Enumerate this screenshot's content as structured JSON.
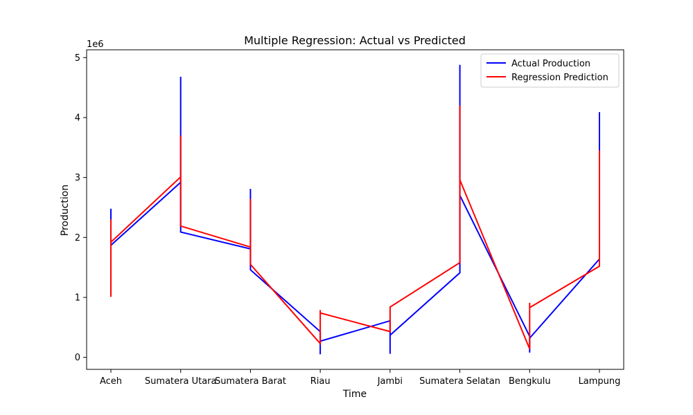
{
  "chart_data": {
    "type": "line",
    "title": "Multiple Regression: Actual vs Predicted",
    "xlabel": "Time",
    "ylabel": "Production",
    "y_offset_label": "1e6",
    "categories": [
      "Aceh",
      "Sumatera Utara",
      "Sumatera Barat",
      "Riau",
      "Jambi",
      "Sumatera Selatan",
      "Bengkulu",
      "Lampung"
    ],
    "y_ticks": [
      0,
      1,
      2,
      3,
      4,
      5
    ],
    "ylim": [
      -0.2,
      5.13
    ],
    "ylim_units_note_none": "",
    "grid": false,
    "legend_position": "top-right",
    "series": [
      {
        "name": "Actual Production",
        "color": "#0000ff",
        "points": [
          {
            "x": "Aceh",
            "y": 2.48
          },
          {
            "x": "Aceh",
            "y": 1.25
          },
          {
            "x": "Aceh",
            "y": 1.87
          },
          {
            "x": "Sumatera Utara",
            "y": 2.92
          },
          {
            "x": "Sumatera Utara",
            "y": 4.68
          },
          {
            "x": "Sumatera Utara",
            "y": 2.09
          },
          {
            "x": "Sumatera Barat",
            "y": 1.81
          },
          {
            "x": "Sumatera Barat",
            "y": 2.81
          },
          {
            "x": "Sumatera Barat",
            "y": 1.46
          },
          {
            "x": "Riau",
            "y": 0.43
          },
          {
            "x": "Riau",
            "y": 0.05
          },
          {
            "x": "Riau",
            "y": 0.27
          },
          {
            "x": "Jambi",
            "y": 0.61
          },
          {
            "x": "Jambi",
            "y": 0.06
          },
          {
            "x": "Jambi",
            "y": 0.37
          },
          {
            "x": "Sumatera Selatan",
            "y": 1.41
          },
          {
            "x": "Sumatera Selatan",
            "y": 4.88
          },
          {
            "x": "Sumatera Selatan",
            "y": 2.7
          },
          {
            "x": "Bengkulu",
            "y": 0.35
          },
          {
            "x": "Bengkulu",
            "y": 0.08
          },
          {
            "x": "Bengkulu",
            "y": 0.32
          },
          {
            "x": "Lampung",
            "y": 1.64
          },
          {
            "x": "Lampung",
            "y": 4.09
          },
          {
            "x": "Lampung",
            "y": 2.6
          }
        ]
      },
      {
        "name": "Regression Prediction",
        "color": "#ff0000",
        "points": [
          {
            "x": "Aceh",
            "y": 2.3
          },
          {
            "x": "Aceh",
            "y": 1.01
          },
          {
            "x": "Aceh",
            "y": 1.92
          },
          {
            "x": "Sumatera Utara",
            "y": 3.01
          },
          {
            "x": "Sumatera Utara",
            "y": 3.7
          },
          {
            "x": "Sumatera Utara",
            "y": 2.19
          },
          {
            "x": "Sumatera Barat",
            "y": 1.84
          },
          {
            "x": "Sumatera Barat",
            "y": 2.64
          },
          {
            "x": "Sumatera Barat",
            "y": 1.55
          },
          {
            "x": "Riau",
            "y": 0.23
          },
          {
            "x": "Riau",
            "y": 0.79
          },
          {
            "x": "Riau",
            "y": 0.74
          },
          {
            "x": "Jambi",
            "y": 0.43
          },
          {
            "x": "Jambi",
            "y": 0.48
          },
          {
            "x": "Jambi",
            "y": 0.84
          },
          {
            "x": "Sumatera Selatan",
            "y": 1.58
          },
          {
            "x": "Sumatera Selatan",
            "y": 4.2
          },
          {
            "x": "Sumatera Selatan",
            "y": 2.96
          },
          {
            "x": "Bengkulu",
            "y": 0.14
          },
          {
            "x": "Bengkulu",
            "y": 0.91
          },
          {
            "x": "Bengkulu",
            "y": 0.83
          },
          {
            "x": "Lampung",
            "y": 1.52
          },
          {
            "x": "Lampung",
            "y": 3.45
          },
          {
            "x": "Lampung",
            "y": 1.52
          }
        ]
      }
    ]
  }
}
